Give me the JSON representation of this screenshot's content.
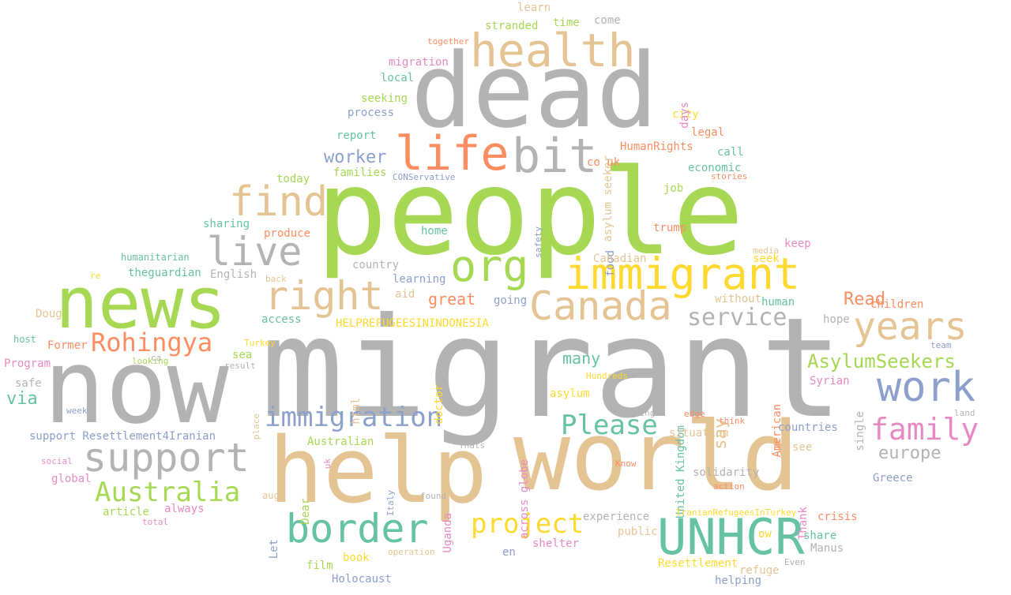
{
  "words": [
    {
      "text": "people",
      "color": "#a6d854"
    },
    {
      "text": "migrant",
      "color": "#b3b3b3"
    },
    {
      "text": "now",
      "color": "#b3b3b3"
    },
    {
      "text": "dead",
      "color": "#b3b3b3"
    },
    {
      "text": "world",
      "color": "#e5c494"
    },
    {
      "text": "help",
      "color": "#e5c494"
    },
    {
      "text": "news",
      "color": "#a6d854"
    },
    {
      "text": "health",
      "color": "#e5c494"
    },
    {
      "text": "life",
      "color": "#fc8d62"
    },
    {
      "text": "bit",
      "color": "#b3b3b3"
    },
    {
      "text": "find",
      "color": "#e5c494"
    },
    {
      "text": "org",
      "color": "#a6d854"
    },
    {
      "text": "immigrant",
      "color": "#ffd92f"
    },
    {
      "text": "live",
      "color": "#b3b3b3"
    },
    {
      "text": "right",
      "color": "#e5c494"
    },
    {
      "text": "Canada",
      "color": "#e5c494"
    },
    {
      "text": "years",
      "color": "#e5c494"
    },
    {
      "text": "work",
      "color": "#8da0cb"
    },
    {
      "text": "service",
      "color": "#b3b3b3"
    },
    {
      "text": "Rohingya",
      "color": "#fc8d62"
    },
    {
      "text": "support",
      "color": "#b3b3b3"
    },
    {
      "text": "immigration",
      "color": "#8da0cb"
    },
    {
      "text": "Please",
      "color": "#66c2a5"
    },
    {
      "text": "family",
      "color": "#e78ac3"
    },
    {
      "text": "Australia",
      "color": "#a6d854"
    },
    {
      "text": "border",
      "color": "#66c2a5"
    },
    {
      "text": "project",
      "color": "#ffd92f"
    },
    {
      "text": "UNHCR",
      "color": "#66c2a5"
    },
    {
      "text": "AsylumSeekers",
      "color": "#a6d854"
    },
    {
      "text": "europe",
      "color": "#b3b3b3"
    },
    {
      "text": "many",
      "color": "#66c2a5"
    },
    {
      "text": "worker",
      "color": "#8da0cb"
    },
    {
      "text": "great",
      "color": "#fc8d62"
    },
    {
      "text": "Read",
      "color": "#fc8d62"
    },
    {
      "text": "via",
      "color": "#66c2a5"
    },
    {
      "text": "say",
      "color": "#e5c494"
    },
    {
      "text": "HELPREFUGEESININDONESIA",
      "color": "#ffd92f"
    },
    {
      "text": "learn",
      "color": "#e5c494"
    },
    {
      "text": "stranded",
      "color": "#a6d854"
    },
    {
      "text": "time",
      "color": "#a6d854"
    },
    {
      "text": "come",
      "color": "#b3b3b3"
    },
    {
      "text": "together",
      "color": "#fc8d62"
    },
    {
      "text": "migration",
      "color": "#e78ac3"
    },
    {
      "text": "local",
      "color": "#66c2a5"
    },
    {
      "text": "seeking",
      "color": "#a6d854"
    },
    {
      "text": "process",
      "color": "#8da0cb"
    },
    {
      "text": "report",
      "color": "#66c2a5"
    },
    {
      "text": "families",
      "color": "#a6d854"
    },
    {
      "text": "today",
      "color": "#a6d854"
    },
    {
      "text": "CONServative",
      "color": "#8da0cb"
    },
    {
      "text": "HumanRights",
      "color": "#fc8d62"
    },
    {
      "text": "legal",
      "color": "#fc8d62"
    },
    {
      "text": "city",
      "color": "#ffd92f"
    },
    {
      "text": "days",
      "color": "#e78ac3"
    },
    {
      "text": "asylum seeker",
      "color": "#e5c494"
    },
    {
      "text": "call",
      "color": "#66c2a5"
    },
    {
      "text": "economic",
      "color": "#66c2a5"
    },
    {
      "text": "stories",
      "color": "#fc8d62"
    },
    {
      "text": "co uk",
      "color": "#fc8d62"
    },
    {
      "text": "job",
      "color": "#a6d854"
    },
    {
      "text": "safety",
      "color": "#8da0cb"
    },
    {
      "text": "trump",
      "color": "#fc8d62"
    },
    {
      "text": "food",
      "color": "#8da0cb"
    },
    {
      "text": "seek",
      "color": "#ffd92f"
    },
    {
      "text": "keep",
      "color": "#e78ac3"
    },
    {
      "text": "media",
      "color": "#e5c494"
    },
    {
      "text": "sharing",
      "color": "#66c2a5"
    },
    {
      "text": "produce",
      "color": "#fc8d62"
    },
    {
      "text": "humanitarian",
      "color": "#66c2a5"
    },
    {
      "text": "theguardian",
      "color": "#66c2a5"
    },
    {
      "text": "English",
      "color": "#b3b3b3"
    },
    {
      "text": "country",
      "color": "#b3b3b3"
    },
    {
      "text": "home",
      "color": "#66c2a5"
    },
    {
      "text": "learning",
      "color": "#8da0cb"
    },
    {
      "text": "Canadian",
      "color": "#e5c494"
    },
    {
      "text": "aid",
      "color": "#e5c494"
    },
    {
      "text": "going",
      "color": "#8da0cb"
    },
    {
      "text": "without",
      "color": "#e5c494"
    },
    {
      "text": "human",
      "color": "#66c2a5"
    },
    {
      "text": "children",
      "color": "#fc8d62"
    },
    {
      "text": "hope",
      "color": "#b3b3b3"
    },
    {
      "text": "team",
      "color": "#8da0cb"
    },
    {
      "text": "re",
      "color": "#ffd92f"
    },
    {
      "text": "back",
      "color": "#e5c494"
    },
    {
      "text": "sea",
      "color": "#a6d854"
    },
    {
      "text": "access",
      "color": "#66c2a5"
    },
    {
      "text": "Doug",
      "color": "#e5c494"
    },
    {
      "text": "host",
      "color": "#66c2a5"
    },
    {
      "text": "Former",
      "color": "#fc8d62"
    },
    {
      "text": "Turkey",
      "color": "#ffd92f"
    },
    {
      "text": "Program",
      "color": "#e78ac3"
    },
    {
      "text": "looking",
      "color": "#a6d854"
    },
    {
      "text": "ca",
      "color": "#b3b3b3"
    },
    {
      "text": "result",
      "color": "#b3b3b3"
    },
    {
      "text": "safe",
      "color": "#b3b3b3"
    },
    {
      "text": "week",
      "color": "#8da0cb"
    },
    {
      "text": "place",
      "color": "#e5c494"
    },
    {
      "text": "html",
      "color": "#e5c494"
    },
    {
      "text": "doctor",
      "color": "#ffd92f"
    },
    {
      "text": "across globe",
      "color": "#e78ac3"
    },
    {
      "text": "United Kingdom",
      "color": "#66c2a5"
    },
    {
      "text": "Hundreds",
      "color": "#ffd92f"
    },
    {
      "text": "asylum",
      "color": "#ffd92f"
    },
    {
      "text": "American",
      "color": "#fc8d62"
    },
    {
      "text": "Syrian",
      "color": "#e78ac3"
    },
    {
      "text": "single",
      "color": "#b3b3b3"
    },
    {
      "text": "support Resettlement4Iranian",
      "color": "#8da0cb"
    },
    {
      "text": "working",
      "color": "#b3b3b3"
    },
    {
      "text": "edge",
      "color": "#fc8d62"
    },
    {
      "text": "think",
      "color": "#fc8d62"
    },
    {
      "text": "land",
      "color": "#b3b3b3"
    },
    {
      "text": "Australian",
      "color": "#a6d854"
    },
    {
      "text": "situation",
      "color": "#e5c494"
    },
    {
      "text": "countries",
      "color": "#8da0cb"
    },
    {
      "text": "see",
      "color": "#e5c494"
    },
    {
      "text": "social",
      "color": "#e78ac3"
    },
    {
      "text": "uk",
      "color": "#e78ac3"
    },
    {
      "text": "Thats",
      "color": "#b3b3b3"
    },
    {
      "text": "global",
      "color": "#e78ac3"
    },
    {
      "text": "Italy",
      "color": "#8da0cb"
    },
    {
      "text": "Uganda",
      "color": "#e78ac3"
    },
    {
      "text": "Know",
      "color": "#fc8d62"
    },
    {
      "text": "solidarity",
      "color": "#b3b3b3"
    },
    {
      "text": "Thank",
      "color": "#e78ac3"
    },
    {
      "text": "Greece",
      "color": "#8da0cb"
    },
    {
      "text": "action",
      "color": "#fc8d62"
    },
    {
      "text": "always",
      "color": "#e78ac3"
    },
    {
      "text": "article",
      "color": "#a6d854"
    },
    {
      "text": "aug",
      "color": "#e5c494"
    },
    {
      "text": "Dear",
      "color": "#a6d854"
    },
    {
      "text": "found",
      "color": "#b3b3b3"
    },
    {
      "text": "experience",
      "color": "#b3b3b3"
    },
    {
      "text": "IranianRefugeesInTurkey",
      "color": "#ffd92f"
    },
    {
      "text": "crisis",
      "color": "#fc8d62"
    },
    {
      "text": "total",
      "color": "#e78ac3"
    },
    {
      "text": "Let",
      "color": "#8da0cb"
    },
    {
      "text": "shelter",
      "color": "#e78ac3"
    },
    {
      "text": "public",
      "color": "#e5c494"
    },
    {
      "text": "ow",
      "color": "#ffd92f"
    },
    {
      "text": "share",
      "color": "#66c2a5"
    },
    {
      "text": "Manus",
      "color": "#b3b3b3"
    },
    {
      "text": "book",
      "color": "#ffd92f"
    },
    {
      "text": "operation",
      "color": "#e5c494"
    },
    {
      "text": "en",
      "color": "#8da0cb"
    },
    {
      "text": "Resettlement",
      "color": "#ffd92f"
    },
    {
      "text": "refuge",
      "color": "#e5c494"
    },
    {
      "text": "Even",
      "color": "#b3b3b3"
    },
    {
      "text": "film",
      "color": "#a6d854"
    },
    {
      "text": "Holocaust",
      "color": "#8da0cb"
    },
    {
      "text": "helping",
      "color": "#8da0cb"
    }
  ]
}
